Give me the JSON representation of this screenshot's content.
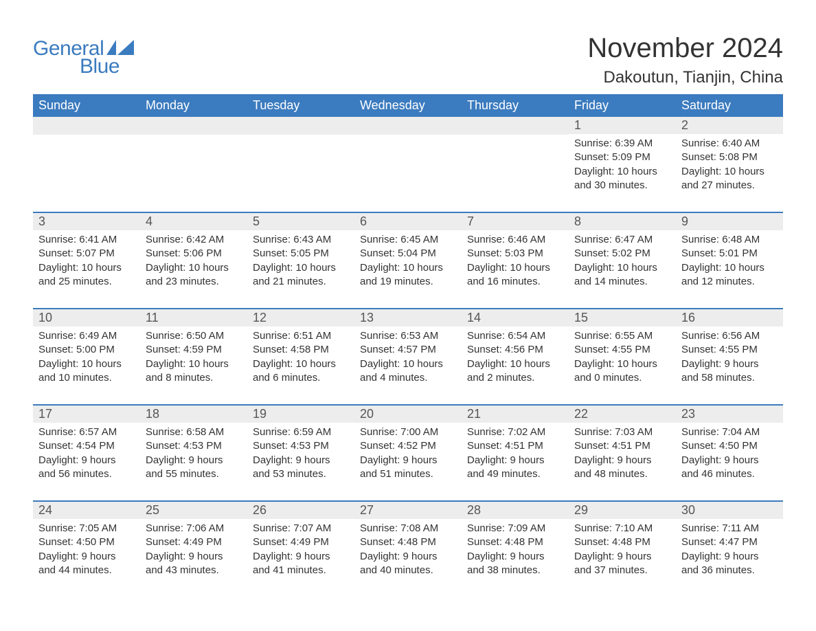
{
  "logo": {
    "text1": "General",
    "text2": "Blue"
  },
  "title": "November 2024",
  "location": "Dakoutun, Tianjin, China",
  "colors": {
    "header_bg": "#3b7bbf",
    "header_text": "#ffffff",
    "daynum_bg": "#ededed",
    "text": "#333333",
    "logo": "#3b7bbf",
    "week_border": "#3b7bbf"
  },
  "day_headers": [
    "Sunday",
    "Monday",
    "Tuesday",
    "Wednesday",
    "Thursday",
    "Friday",
    "Saturday"
  ],
  "weeks": [
    [
      {
        "empty": true
      },
      {
        "empty": true
      },
      {
        "empty": true
      },
      {
        "empty": true
      },
      {
        "empty": true
      },
      {
        "day": "1",
        "sunrise": "6:39 AM",
        "sunset": "5:09 PM",
        "daylight": "10 hours and 30 minutes."
      },
      {
        "day": "2",
        "sunrise": "6:40 AM",
        "sunset": "5:08 PM",
        "daylight": "10 hours and 27 minutes."
      }
    ],
    [
      {
        "day": "3",
        "sunrise": "6:41 AM",
        "sunset": "5:07 PM",
        "daylight": "10 hours and 25 minutes."
      },
      {
        "day": "4",
        "sunrise": "6:42 AM",
        "sunset": "5:06 PM",
        "daylight": "10 hours and 23 minutes."
      },
      {
        "day": "5",
        "sunrise": "6:43 AM",
        "sunset": "5:05 PM",
        "daylight": "10 hours and 21 minutes."
      },
      {
        "day": "6",
        "sunrise": "6:45 AM",
        "sunset": "5:04 PM",
        "daylight": "10 hours and 19 minutes."
      },
      {
        "day": "7",
        "sunrise": "6:46 AM",
        "sunset": "5:03 PM",
        "daylight": "10 hours and 16 minutes."
      },
      {
        "day": "8",
        "sunrise": "6:47 AM",
        "sunset": "5:02 PM",
        "daylight": "10 hours and 14 minutes."
      },
      {
        "day": "9",
        "sunrise": "6:48 AM",
        "sunset": "5:01 PM",
        "daylight": "10 hours and 12 minutes."
      }
    ],
    [
      {
        "day": "10",
        "sunrise": "6:49 AM",
        "sunset": "5:00 PM",
        "daylight": "10 hours and 10 minutes."
      },
      {
        "day": "11",
        "sunrise": "6:50 AM",
        "sunset": "4:59 PM",
        "daylight": "10 hours and 8 minutes."
      },
      {
        "day": "12",
        "sunrise": "6:51 AM",
        "sunset": "4:58 PM",
        "daylight": "10 hours and 6 minutes."
      },
      {
        "day": "13",
        "sunrise": "6:53 AM",
        "sunset": "4:57 PM",
        "daylight": "10 hours and 4 minutes."
      },
      {
        "day": "14",
        "sunrise": "6:54 AM",
        "sunset": "4:56 PM",
        "daylight": "10 hours and 2 minutes."
      },
      {
        "day": "15",
        "sunrise": "6:55 AM",
        "sunset": "4:55 PM",
        "daylight": "10 hours and 0 minutes."
      },
      {
        "day": "16",
        "sunrise": "6:56 AM",
        "sunset": "4:55 PM",
        "daylight": "9 hours and 58 minutes."
      }
    ],
    [
      {
        "day": "17",
        "sunrise": "6:57 AM",
        "sunset": "4:54 PM",
        "daylight": "9 hours and 56 minutes."
      },
      {
        "day": "18",
        "sunrise": "6:58 AM",
        "sunset": "4:53 PM",
        "daylight": "9 hours and 55 minutes."
      },
      {
        "day": "19",
        "sunrise": "6:59 AM",
        "sunset": "4:53 PM",
        "daylight": "9 hours and 53 minutes."
      },
      {
        "day": "20",
        "sunrise": "7:00 AM",
        "sunset": "4:52 PM",
        "daylight": "9 hours and 51 minutes."
      },
      {
        "day": "21",
        "sunrise": "7:02 AM",
        "sunset": "4:51 PM",
        "daylight": "9 hours and 49 minutes."
      },
      {
        "day": "22",
        "sunrise": "7:03 AM",
        "sunset": "4:51 PM",
        "daylight": "9 hours and 48 minutes."
      },
      {
        "day": "23",
        "sunrise": "7:04 AM",
        "sunset": "4:50 PM",
        "daylight": "9 hours and 46 minutes."
      }
    ],
    [
      {
        "day": "24",
        "sunrise": "7:05 AM",
        "sunset": "4:50 PM",
        "daylight": "9 hours and 44 minutes."
      },
      {
        "day": "25",
        "sunrise": "7:06 AM",
        "sunset": "4:49 PM",
        "daylight": "9 hours and 43 minutes."
      },
      {
        "day": "26",
        "sunrise": "7:07 AM",
        "sunset": "4:49 PM",
        "daylight": "9 hours and 41 minutes."
      },
      {
        "day": "27",
        "sunrise": "7:08 AM",
        "sunset": "4:48 PM",
        "daylight": "9 hours and 40 minutes."
      },
      {
        "day": "28",
        "sunrise": "7:09 AM",
        "sunset": "4:48 PM",
        "daylight": "9 hours and 38 minutes."
      },
      {
        "day": "29",
        "sunrise": "7:10 AM",
        "sunset": "4:48 PM",
        "daylight": "9 hours and 37 minutes."
      },
      {
        "day": "30",
        "sunrise": "7:11 AM",
        "sunset": "4:47 PM",
        "daylight": "9 hours and 36 minutes."
      }
    ]
  ],
  "labels": {
    "sunrise": "Sunrise: ",
    "sunset": "Sunset: ",
    "daylight": "Daylight: "
  }
}
